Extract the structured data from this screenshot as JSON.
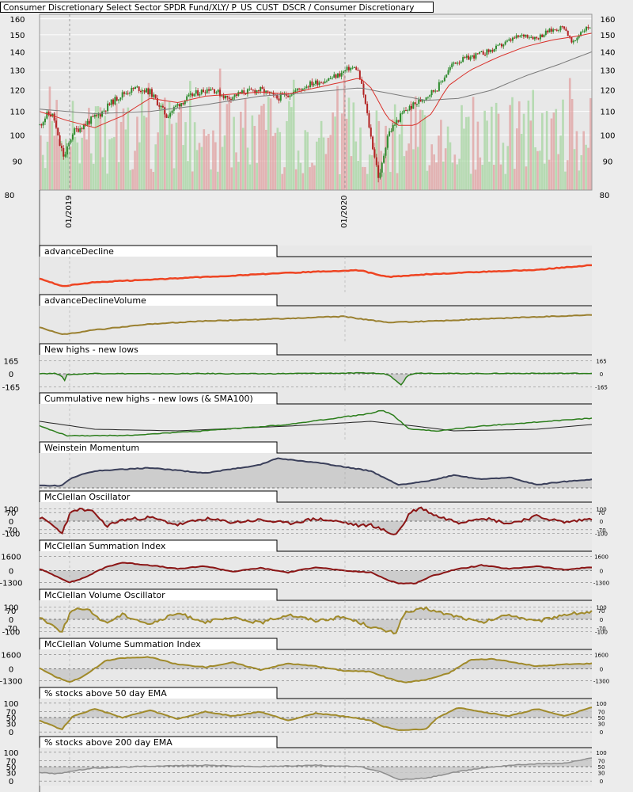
{
  "title": "Consumer Discretionary Select Sector SPDR Fund/XLY/ P_US_CUST_DSCR / Consumer Discretionary",
  "colors": {
    "grid": "#ffffff",
    "frame": "#000000",
    "bg": "#e8e8e8",
    "up": "#2e8b2e",
    "down": "#b22222",
    "sma_short": "#d9302a",
    "sma_long": "#7a7a7a",
    "vol_up": "#a6d6a0",
    "vol_down": "#e0a0a0",
    "red": "#ee4422",
    "olive": "#9a8030",
    "green": "#2a7d1a",
    "navy": "#3a3f5a",
    "maroon": "#8b1515",
    "gold": "#a08a2a",
    "gray": "#8e8e8e",
    "fill": "#c8c8c8"
  },
  "chart_data": [
    {
      "type": "candlestick",
      "title": "Consumer Discretionary Select Sector SPDR Fund/XLY/ P_US_CUST_DSCR / Consumer Discretionary",
      "x_tick_labels": [
        "01/2019",
        "01/2020"
      ],
      "y_ticks": [
        80,
        90,
        100,
        110,
        120,
        130,
        140,
        150,
        160
      ],
      "ylim": [
        80,
        163
      ],
      "scale": "log",
      "grid": true,
      "x_range": [
        "2018-10",
        "2021-05"
      ],
      "price_path": [
        [
          0,
          104
        ],
        [
          0.015,
          109
        ],
        [
          0.025,
          108
        ],
        [
          0.035,
          97
        ],
        [
          0.045,
          91
        ],
        [
          0.06,
          101
        ],
        [
          0.085,
          105
        ],
        [
          0.11,
          109
        ],
        [
          0.13,
          114
        ],
        [
          0.15,
          118
        ],
        [
          0.175,
          121
        ],
        [
          0.2,
          119
        ],
        [
          0.23,
          108
        ],
        [
          0.25,
          113
        ],
        [
          0.28,
          118
        ],
        [
          0.31,
          121
        ],
        [
          0.34,
          116
        ],
        [
          0.37,
          119
        ],
        [
          0.4,
          120
        ],
        [
          0.43,
          116
        ],
        [
          0.46,
          119
        ],
        [
          0.49,
          123
        ],
        [
          0.52,
          125
        ],
        [
          0.545,
          128
        ],
        [
          0.56,
          131
        ],
        [
          0.575,
          131
        ],
        [
          0.585,
          120
        ],
        [
          0.6,
          99
        ],
        [
          0.615,
          83
        ],
        [
          0.63,
          100
        ],
        [
          0.66,
          110
        ],
        [
          0.69,
          115
        ],
        [
          0.72,
          121
        ],
        [
          0.75,
          134
        ],
        [
          0.78,
          137
        ],
        [
          0.82,
          141
        ],
        [
          0.86,
          148
        ],
        [
          0.88,
          150
        ],
        [
          0.9,
          148
        ],
        [
          0.92,
          152
        ],
        [
          0.95,
          155
        ],
        [
          0.965,
          144
        ],
        [
          0.98,
          152
        ],
        [
          1,
          156
        ]
      ],
      "sma_short": [
        [
          0,
          110
        ],
        [
          0.05,
          106
        ],
        [
          0.1,
          103
        ],
        [
          0.15,
          108
        ],
        [
          0.2,
          116
        ],
        [
          0.25,
          114
        ],
        [
          0.3,
          117
        ],
        [
          0.35,
          118
        ],
        [
          0.4,
          119
        ],
        [
          0.45,
          118
        ],
        [
          0.5,
          121
        ],
        [
          0.55,
          124
        ],
        [
          0.58,
          126
        ],
        [
          0.6,
          121
        ],
        [
          0.63,
          107
        ],
        [
          0.65,
          104
        ],
        [
          0.68,
          104
        ],
        [
          0.71,
          109
        ],
        [
          0.74,
          122
        ],
        [
          0.78,
          130
        ],
        [
          0.83,
          137
        ],
        [
          0.88,
          143
        ],
        [
          0.93,
          147
        ],
        [
          0.97,
          149
        ],
        [
          1,
          151
        ]
      ],
      "sma_long": [
        [
          0,
          111
        ],
        [
          0.1,
          109
        ],
        [
          0.2,
          110
        ],
        [
          0.3,
          113
        ],
        [
          0.4,
          117
        ],
        [
          0.5,
          119
        ],
        [
          0.58,
          121
        ],
        [
          0.64,
          118
        ],
        [
          0.7,
          115
        ],
        [
          0.76,
          116
        ],
        [
          0.82,
          120
        ],
        [
          0.88,
          127
        ],
        [
          0.94,
          133
        ],
        [
          1,
          140
        ]
      ]
    },
    {
      "type": "line",
      "title": "advanceDecline",
      "path": [
        [
          0,
          3
        ],
        [
          0.04,
          6
        ],
        [
          0.1,
          4.5
        ],
        [
          0.2,
          3.5
        ],
        [
          0.3,
          2.5
        ],
        [
          0.4,
          1.5
        ],
        [
          0.5,
          0.5
        ],
        [
          0.58,
          0
        ],
        [
          0.63,
          2.5
        ],
        [
          0.7,
          1.5
        ],
        [
          0.8,
          0.6
        ],
        [
          0.9,
          -0.2
        ],
        [
          1,
          -2
        ]
      ]
    },
    {
      "type": "line",
      "title": "advanceDeclineVolume",
      "path": [
        [
          0,
          2.5
        ],
        [
          0.04,
          5
        ],
        [
          0.1,
          3.5
        ],
        [
          0.2,
          1.5
        ],
        [
          0.3,
          0.5
        ],
        [
          0.4,
          0
        ],
        [
          0.55,
          -1
        ],
        [
          0.63,
          1
        ],
        [
          0.72,
          0.5
        ],
        [
          0.85,
          -0.5
        ],
        [
          1,
          -1.5
        ]
      ]
    },
    {
      "type": "area",
      "title": "New highs - new lows",
      "y_ticks": [
        165,
        0,
        -165
      ],
      "ylim": [
        -200,
        200
      ],
      "path": [
        [
          0,
          5
        ],
        [
          0.03,
          3
        ],
        [
          0.04,
          -20
        ],
        [
          0.045,
          -95
        ],
        [
          0.05,
          -10
        ],
        [
          0.1,
          5
        ],
        [
          0.2,
          0
        ],
        [
          0.3,
          3
        ],
        [
          0.4,
          0
        ],
        [
          0.5,
          6
        ],
        [
          0.6,
          10
        ],
        [
          0.63,
          -5
        ],
        [
          0.645,
          -80
        ],
        [
          0.655,
          -140
        ],
        [
          0.665,
          -30
        ],
        [
          0.68,
          10
        ],
        [
          0.75,
          3
        ],
        [
          0.85,
          5
        ],
        [
          1,
          6
        ]
      ]
    },
    {
      "type": "line",
      "title": "Cummulative new highs - new lows (& SMA100)",
      "path": [
        [
          0,
          11
        ],
        [
          0.05,
          17
        ],
        [
          0.15,
          17
        ],
        [
          0.3,
          14
        ],
        [
          0.45,
          10
        ],
        [
          0.6,
          3
        ],
        [
          0.62,
          1
        ],
        [
          0.64,
          4
        ],
        [
          0.67,
          13
        ],
        [
          0.72,
          14
        ],
        [
          0.8,
          11
        ],
        [
          1,
          6
        ]
      ],
      "sma": [
        [
          0,
          8
        ],
        [
          0.1,
          13
        ],
        [
          0.25,
          14
        ],
        [
          0.45,
          11
        ],
        [
          0.6,
          8
        ],
        [
          0.68,
          11
        ],
        [
          0.75,
          14
        ],
        [
          0.9,
          13
        ],
        [
          1,
          10
        ]
      ]
    },
    {
      "type": "area",
      "title": "Weinstein Momentum",
      "path": [
        [
          0,
          34
        ],
        [
          0.04,
          34
        ],
        [
          0.06,
          26
        ],
        [
          0.1,
          20
        ],
        [
          0.2,
          17
        ],
        [
          0.3,
          22
        ],
        [
          0.35,
          18
        ],
        [
          0.4,
          14
        ],
        [
          0.43,
          8
        ],
        [
          0.5,
          12
        ],
        [
          0.55,
          16
        ],
        [
          0.6,
          20
        ],
        [
          0.65,
          33
        ],
        [
          0.7,
          30
        ],
        [
          0.75,
          24
        ],
        [
          0.8,
          28
        ],
        [
          0.85,
          26
        ],
        [
          0.9,
          33
        ],
        [
          0.95,
          30
        ],
        [
          1,
          28
        ]
      ]
    },
    {
      "type": "line",
      "title": "McClellan Oscillator",
      "y_ticks": [
        100,
        70,
        0,
        -70,
        -100
      ],
      "ylim": [
        -130,
        130
      ],
      "path": [
        [
          0,
          30
        ],
        [
          0.02,
          -20
        ],
        [
          0.04,
          -100
        ],
        [
          0.055,
          60
        ],
        [
          0.07,
          100
        ],
        [
          0.1,
          70
        ],
        [
          0.12,
          -40
        ],
        [
          0.15,
          10
        ],
        [
          0.2,
          30
        ],
        [
          0.25,
          -30
        ],
        [
          0.3,
          20
        ],
        [
          0.35,
          -10
        ],
        [
          0.4,
          10
        ],
        [
          0.45,
          -20
        ],
        [
          0.5,
          20
        ],
        [
          0.55,
          -10
        ],
        [
          0.58,
          -40
        ],
        [
          0.6,
          -30
        ],
        [
          0.63,
          -90
        ],
        [
          0.645,
          -110
        ],
        [
          0.66,
          -20
        ],
        [
          0.67,
          70
        ],
        [
          0.69,
          110
        ],
        [
          0.72,
          40
        ],
        [
          0.76,
          -10
        ],
        [
          0.8,
          30
        ],
        [
          0.85,
          -20
        ],
        [
          0.9,
          40
        ],
        [
          0.95,
          -10
        ],
        [
          1,
          20
        ]
      ]
    },
    {
      "type": "area",
      "title": "McClellan Summation Index",
      "y_ticks": [
        1600,
        0,
        -1300
      ],
      "ylim": [
        -1700,
        1800
      ],
      "path": [
        [
          0,
          200
        ],
        [
          0.03,
          -600
        ],
        [
          0.055,
          -1300
        ],
        [
          0.08,
          -800
        ],
        [
          0.12,
          400
        ],
        [
          0.15,
          900
        ],
        [
          0.2,
          600
        ],
        [
          0.25,
          200
        ],
        [
          0.3,
          500
        ],
        [
          0.35,
          -100
        ],
        [
          0.4,
          300
        ],
        [
          0.45,
          -200
        ],
        [
          0.5,
          400
        ],
        [
          0.55,
          0
        ],
        [
          0.6,
          -200
        ],
        [
          0.63,
          -1000
        ],
        [
          0.65,
          -1400
        ],
        [
          0.68,
          -1400
        ],
        [
          0.71,
          -600
        ],
        [
          0.75,
          100
        ],
        [
          0.8,
          600
        ],
        [
          0.85,
          200
        ],
        [
          0.9,
          500
        ],
        [
          0.95,
          100
        ],
        [
          1,
          400
        ]
      ]
    },
    {
      "type": "line",
      "title": "McClellan Volume Oscillator",
      "y_ticks": [
        100,
        70,
        0,
        -70,
        -100
      ],
      "ylim": [
        -130,
        130
      ],
      "path": [
        [
          0,
          20
        ],
        [
          0.02,
          -40
        ],
        [
          0.04,
          -100
        ],
        [
          0.06,
          90
        ],
        [
          0.09,
          70
        ],
        [
          0.12,
          -30
        ],
        [
          0.15,
          40
        ],
        [
          0.2,
          -40
        ],
        [
          0.25,
          50
        ],
        [
          0.3,
          -20
        ],
        [
          0.35,
          10
        ],
        [
          0.4,
          -30
        ],
        [
          0.45,
          40
        ],
        [
          0.5,
          -10
        ],
        [
          0.55,
          20
        ],
        [
          0.6,
          -60
        ],
        [
          0.63,
          -100
        ],
        [
          0.645,
          -110
        ],
        [
          0.66,
          50
        ],
        [
          0.7,
          90
        ],
        [
          0.72,
          60
        ],
        [
          0.76,
          20
        ],
        [
          0.8,
          -30
        ],
        [
          0.85,
          40
        ],
        [
          0.9,
          -20
        ],
        [
          0.95,
          40
        ],
        [
          1,
          60
        ]
      ]
    },
    {
      "type": "area",
      "title": "McClellan Volume Summation Index",
      "y_ticks": [
        1600,
        0,
        -1300
      ],
      "ylim": [
        -1700,
        1800
      ],
      "path": [
        [
          0,
          100
        ],
        [
          0.03,
          -900
        ],
        [
          0.055,
          -1450
        ],
        [
          0.08,
          -800
        ],
        [
          0.12,
          900
        ],
        [
          0.15,
          1200
        ],
        [
          0.2,
          1300
        ],
        [
          0.25,
          500
        ],
        [
          0.3,
          200
        ],
        [
          0.35,
          700
        ],
        [
          0.4,
          -100
        ],
        [
          0.45,
          600
        ],
        [
          0.5,
          300
        ],
        [
          0.55,
          -200
        ],
        [
          0.6,
          -300
        ],
        [
          0.63,
          -1000
        ],
        [
          0.66,
          -1500
        ],
        [
          0.7,
          -1200
        ],
        [
          0.74,
          -500
        ],
        [
          0.78,
          1000
        ],
        [
          0.82,
          1100
        ],
        [
          0.86,
          700
        ],
        [
          0.9,
          300
        ],
        [
          0.95,
          500
        ],
        [
          1,
          600
        ]
      ]
    },
    {
      "type": "area",
      "title": "% stocks above 50 day EMA",
      "y_ticks": [
        100,
        70,
        50,
        30,
        0
      ],
      "ylim": [
        -5,
        105
      ],
      "path": [
        [
          0,
          40
        ],
        [
          0.02,
          25
        ],
        [
          0.04,
          8
        ],
        [
          0.06,
          55
        ],
        [
          0.1,
          80
        ],
        [
          0.15,
          50
        ],
        [
          0.2,
          75
        ],
        [
          0.25,
          45
        ],
        [
          0.3,
          70
        ],
        [
          0.35,
          55
        ],
        [
          0.4,
          70
        ],
        [
          0.45,
          40
        ],
        [
          0.5,
          65
        ],
        [
          0.55,
          55
        ],
        [
          0.6,
          40
        ],
        [
          0.62,
          20
        ],
        [
          0.65,
          5
        ],
        [
          0.7,
          10
        ],
        [
          0.72,
          50
        ],
        [
          0.76,
          85
        ],
        [
          0.8,
          70
        ],
        [
          0.85,
          55
        ],
        [
          0.9,
          80
        ],
        [
          0.95,
          55
        ],
        [
          1,
          85
        ]
      ]
    },
    {
      "type": "area",
      "title": "% stocks above 200 day EMA",
      "y_ticks": [
        70,
        50,
        30,
        0,
        100
      ],
      "ylim": [
        -5,
        105
      ],
      "path": [
        [
          0,
          30
        ],
        [
          0.03,
          25
        ],
        [
          0.06,
          35
        ],
        [
          0.1,
          45
        ],
        [
          0.2,
          52
        ],
        [
          0.3,
          55
        ],
        [
          0.4,
          50
        ],
        [
          0.5,
          55
        ],
        [
          0.58,
          50
        ],
        [
          0.62,
          30
        ],
        [
          0.65,
          5
        ],
        [
          0.7,
          10
        ],
        [
          0.75,
          30
        ],
        [
          0.8,
          45
        ],
        [
          0.85,
          55
        ],
        [
          0.9,
          60
        ],
        [
          0.95,
          62
        ],
        [
          1,
          80
        ]
      ]
    }
  ]
}
